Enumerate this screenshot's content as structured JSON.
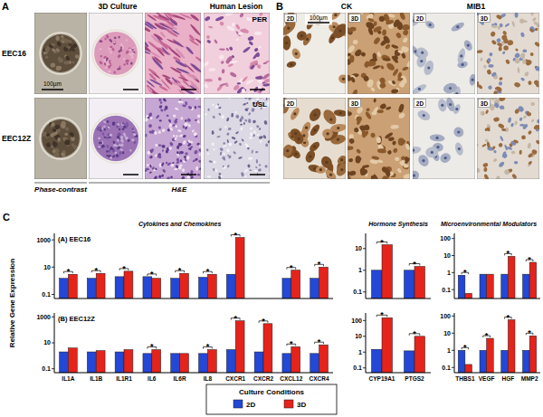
{
  "figure": {
    "panel_a": {
      "label": "A",
      "header_culture": "3D Culture",
      "header_lesion": "Human Lesion",
      "rows": [
        "EEC16",
        "EEC12Z"
      ],
      "lesions": [
        "PER",
        "USL"
      ],
      "scale_bar": "100µm",
      "footer_phase": "Phase-contrast",
      "footer_he": "H&E"
    },
    "panel_b": {
      "label": "B",
      "headers": [
        "CK",
        "MIB1"
      ],
      "conditions": [
        "2D",
        "3D"
      ],
      "scale_bar": "100µm"
    },
    "panel_c": {
      "label": "C",
      "y_label": "Relative Gene Expression",
      "legend_title": "Culture Conditions"
    }
  },
  "chart_data": [
    {
      "type": "bar",
      "title": "Cytokines and Chemokines",
      "subtitle": "(A) EEC16",
      "categories": [
        null,
        null,
        null,
        null,
        null,
        null,
        null,
        null,
        null,
        null
      ],
      "tick_labels": "y",
      "log": "y",
      "ylim": [
        0.05,
        3000
      ],
      "yticks": [
        0.1,
        10,
        1000
      ],
      "legend": "bottom",
      "series": [
        {
          "name": "2D",
          "color": "#2347d6",
          "values": [
            1.5,
            1.5,
            2,
            2,
            1.5,
            1.8,
            3,
            null,
            1.5,
            1.5
          ]
        },
        {
          "name": "3D",
          "color": "#e5231b",
          "values": [
            3,
            3.5,
            5,
            1.5,
            3.5,
            3,
            1500,
            null,
            6,
            10
          ]
        }
      ],
      "significance": [
        "*",
        "*",
        "*",
        "*",
        "*",
        "*",
        "*",
        null,
        "*",
        "*"
      ]
    },
    {
      "type": "bar",
      "title": "Hormone Synthesis",
      "categories": [
        null,
        null
      ],
      "tick_labels": "y",
      "log": "y",
      "ylim": [
        0.05,
        50
      ],
      "yticks": [
        0.1,
        1,
        10
      ],
      "series": [
        {
          "color": "#2347d6",
          "values": [
            1,
            1
          ]
        },
        {
          "color": "#e5231b",
          "values": [
            15,
            1.5
          ]
        }
      ],
      "significance": [
        "*",
        "*"
      ]
    },
    {
      "type": "bar",
      "title": "Microenvironmental Modulators",
      "categories": [
        null,
        null,
        null,
        null
      ],
      "tick_labels": "y",
      "log": "y",
      "ylim": [
        0.03,
        200
      ],
      "yticks": [
        0.1,
        1,
        10,
        100
      ],
      "series": [
        {
          "color": "#2347d6",
          "values": [
            0.7,
            0.8,
            0.8,
            0.8
          ]
        },
        {
          "color": "#e5231b",
          "values": [
            0.06,
            0.8,
            9,
            4
          ]
        }
      ],
      "significance": [
        "*",
        null,
        "*",
        "*"
      ]
    },
    {
      "type": "bar",
      "subtitle": "(B) EEC12Z",
      "categories": [
        "IL1A",
        "IL1B",
        "IL1R1",
        "IL6",
        "IL6R",
        "IL8",
        "CXCR1",
        "CXCR2",
        "CXCL12",
        "CXCR4"
      ],
      "log": "y",
      "ylim": [
        0.05,
        2000
      ],
      "yticks": [
        0.1,
        10,
        1000
      ],
      "series": [
        {
          "color": "#2347d6",
          "values": [
            2,
            2,
            2,
            1.5,
            1.5,
            1.5,
            3,
            2,
            1.5,
            1.5
          ]
        },
        {
          "color": "#e5231b",
          "values": [
            4,
            2.5,
            3,
            3,
            1.5,
            3,
            500,
            300,
            5,
            7
          ]
        }
      ],
      "significance": [
        null,
        null,
        null,
        "*",
        null,
        "*",
        "*",
        "*",
        "*",
        "*"
      ]
    },
    {
      "type": "bar",
      "categories": [
        "CYP19A1",
        "PTGS2"
      ],
      "log": "y",
      "ylim": [
        0.05,
        300
      ],
      "yticks": [
        0.1,
        1,
        10,
        100
      ],
      "series": [
        {
          "color": "#2347d6",
          "values": [
            1.5,
            1.2
          ]
        },
        {
          "color": "#e5231b",
          "values": [
            150,
            10
          ]
        }
      ],
      "significance": [
        "*",
        "*"
      ]
    },
    {
      "type": "bar",
      "categories": [
        "THBS1",
        "VEGF",
        "HGF",
        "MMP2"
      ],
      "log": "y",
      "ylim": [
        0.05,
        150
      ],
      "yticks": [
        0.1,
        1,
        10,
        100
      ],
      "series": [
        {
          "color": "#2347d6",
          "values": [
            1,
            1,
            1,
            1
          ]
        },
        {
          "color": "#e5231b",
          "values": [
            0.15,
            5,
            60,
            7
          ]
        }
      ],
      "significance": [
        "*",
        "*",
        "*",
        "*"
      ]
    }
  ]
}
